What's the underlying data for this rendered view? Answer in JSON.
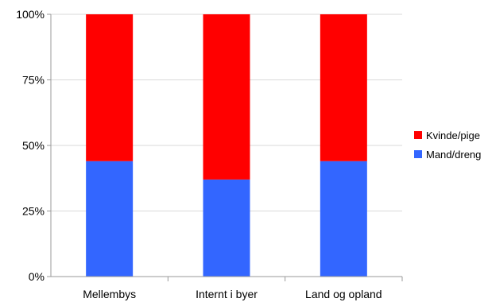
{
  "chart_data": {
    "type": "bar",
    "stacked": true,
    "percent": true,
    "categories": [
      "Mellembys",
      "Internt i byer",
      "Land og opland"
    ],
    "series": [
      {
        "name": "Mand/dreng",
        "color": "#3366ff",
        "values": [
          44,
          37,
          44
        ]
      },
      {
        "name": "Kvinde/pige",
        "color": "#ff0000",
        "values": [
          56,
          63,
          56
        ]
      }
    ],
    "yticks": [
      "0%",
      "25%",
      "50%",
      "75%",
      "100%"
    ],
    "ylim": [
      0,
      100
    ],
    "grid": true,
    "legend": "right"
  }
}
